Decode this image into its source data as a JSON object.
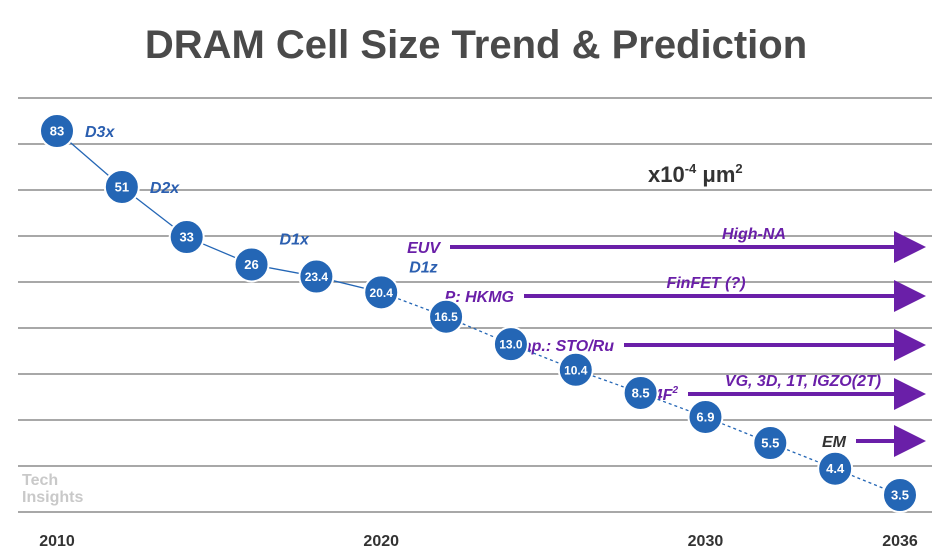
{
  "chart_data": {
    "type": "line",
    "title": "DRAM Cell Size Trend & Prediction",
    "unit_label": {
      "base": "x10",
      "exp": "-4",
      "mid": " μm",
      "exp2": "2"
    },
    "x_tick_labels": [
      "2010",
      "2020",
      "2030",
      "2036"
    ],
    "x_ticks": [
      2010,
      2020,
      2030,
      2036
    ],
    "xlim": [
      2010,
      2036
    ],
    "grid": true,
    "series": [
      {
        "values": [
          {
            "x": 2010,
            "y": 83,
            "label": "83"
          },
          {
            "x": 2012,
            "y": 51,
            "label": "51"
          },
          {
            "x": 2014,
            "y": 33,
            "label": "33"
          },
          {
            "x": 2016,
            "y": 26,
            "label": "26"
          },
          {
            "x": 2018,
            "y": 23.4,
            "label": "23.4"
          },
          {
            "x": 2020,
            "y": 20.4,
            "label": "20.4"
          },
          {
            "x": 2022,
            "y": 16.5,
            "label": "16.5"
          },
          {
            "x": 2024,
            "y": 13.0,
            "label": "13.0"
          },
          {
            "x": 2026,
            "y": 10.4,
            "label": "10.4"
          },
          {
            "x": 2028,
            "y": 8.5,
            "label": "8.5"
          },
          {
            "x": 2030,
            "y": 6.9,
            "label": "6.9"
          },
          {
            "x": 2032,
            "y": 5.5,
            "label": "5.5"
          },
          {
            "x": 2034,
            "y": 4.4,
            "label": "4.4"
          },
          {
            "x": 2036,
            "y": 3.5,
            "label": "3.5"
          }
        ]
      }
    ],
    "actual_until_year": 2020,
    "generation_labels": [
      {
        "at": 2010,
        "text": "D3x"
      },
      {
        "at": 2012,
        "text": "D2x"
      },
      {
        "at": 2016,
        "text": "D1x"
      },
      {
        "at": 2020,
        "text": "D1z"
      }
    ],
    "technology_arrows": [
      {
        "label": "EUV",
        "above": "High-NA",
        "start_year": 2022,
        "end_year": 2036
      },
      {
        "label": "P: HKMG",
        "above": "FinFET (?)",
        "start_year": 2024,
        "end_year": 2036
      },
      {
        "label": "Cap.: STO/Ru",
        "above": "",
        "start_year": 2027,
        "end_year": 2036
      },
      {
        "label": "4F",
        "label_sup": "2",
        "above": "VG, 3D, 1T, IGZO(2T)",
        "start_year": 2030,
        "end_year": 2036
      },
      {
        "label": "EM",
        "above": "",
        "start_year": 2033,
        "end_year": 2036
      }
    ],
    "colors": {
      "node_fill": "#2466b5",
      "node_stroke": "#ffffff",
      "line": "#2466b5",
      "arrow": "#6a1fa8",
      "em_label": "#333333",
      "gen_label": "#2b5fb0",
      "grid": "#8c8c8c",
      "title": "#4a4a4a"
    },
    "logo": {
      "line1": "Tech",
      "line2": "Insights"
    }
  }
}
